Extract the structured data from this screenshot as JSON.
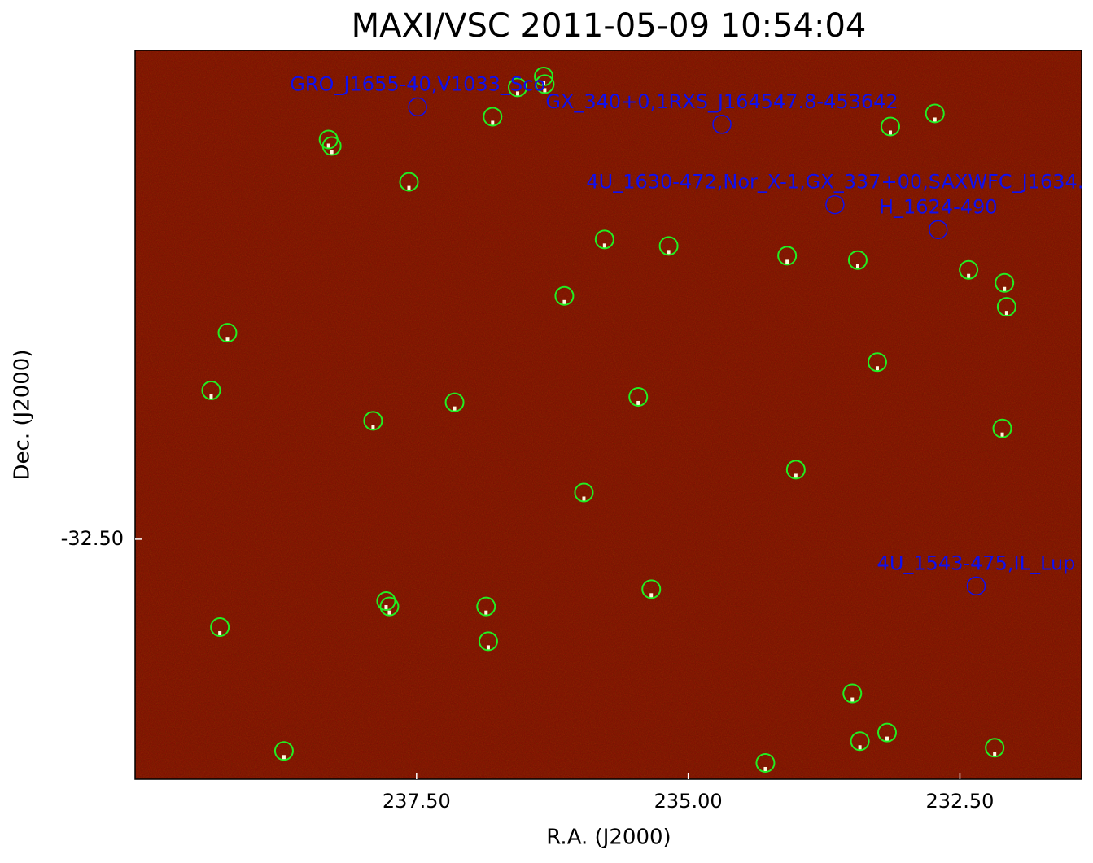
{
  "chart_data": {
    "type": "scatter",
    "title": "MAXI/VSC 2011-05-09 10:54:04",
    "x_label": "R.A. (J2000)",
    "y_label": "Dec. (J2000)",
    "xlim": [
      240.09,
      231.38
    ],
    "ylim": [
      -34.71,
      -28.0
    ],
    "xticks": [
      {
        "value": 237.5,
        "label": "237.50"
      },
      {
        "value": 235.0,
        "label": "235.00"
      },
      {
        "value": 232.5,
        "label": "232.50"
      }
    ],
    "yticks": [
      {
        "value": -32.5,
        "label": "-32.50"
      }
    ],
    "background": "#7e0c02",
    "detections": {
      "color": "#22ee22",
      "x": [
        238.31,
        238.28,
        237.57,
        236.8,
        236.57,
        236.33,
        236.32,
        233.14,
        232.73,
        235.77,
        235.18,
        234.09,
        233.44,
        232.42,
        232.09,
        232.07,
        236.14,
        239.24,
        233.26,
        239.39,
        237.15,
        237.9,
        235.46,
        232.11,
        234.01,
        235.96,
        235.34,
        237.78,
        237.75,
        236.86,
        239.31,
        236.84,
        233.49,
        233.42,
        233.17,
        232.18,
        238.72,
        234.29
      ],
      "y": [
        -28.82,
        -28.88,
        -29.21,
        -28.61,
        -28.34,
        -28.24,
        -28.31,
        -28.7,
        -28.58,
        -29.74,
        -29.8,
        -29.89,
        -29.93,
        -30.02,
        -30.14,
        -30.36,
        -30.26,
        -30.6,
        -30.87,
        -31.13,
        -31.24,
        -31.41,
        -31.19,
        -31.48,
        -31.86,
        -32.07,
        -32.96,
        -33.07,
        -33.12,
        -33.12,
        -33.31,
        -33.44,
        -33.92,
        -34.36,
        -34.28,
        -34.42,
        -34.45,
        -34.56
      ]
    },
    "catalog": {
      "color": "#1010ee",
      "x": [
        237.49,
        234.69,
        233.65,
        232.7,
        232.35
      ],
      "y": [
        -28.52,
        -28.68,
        -29.42,
        -29.65,
        -32.93
      ],
      "labels": [
        "GRO_J1655-40,V1033_Sco",
        "GX_340+0,1RXS_J164547.8-453642",
        "4U_1630-472,Nor_X-1,GX_337+00,SAXWFC_J1634.",
        "H_1624-490",
        "4U_1543-475,IL_Lup"
      ]
    }
  }
}
